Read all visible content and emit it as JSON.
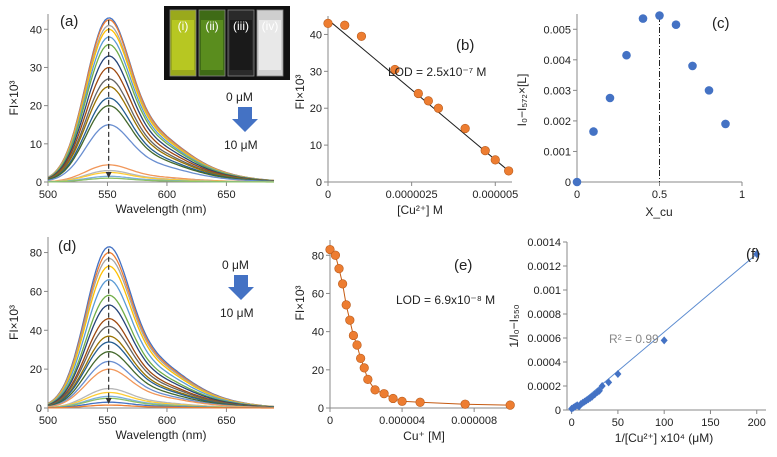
{
  "figure": {
    "panels": [
      "(a)",
      "(b)",
      "(c)",
      "(d)",
      "(e)",
      "(f)"
    ],
    "inset_labels": [
      "(i)",
      "(ii)",
      "(iii)",
      "(iv)"
    ],
    "arrow_text_a": [
      "0 μM",
      "10 μM"
    ],
    "arrow_text_d": [
      "0 μM",
      "10 μM"
    ],
    "colors": {
      "curves": [
        "#4472c4",
        "#ed7d31",
        "#a5a5a5",
        "#ffc000",
        "#5b9bd5",
        "#70ad47",
        "#264478",
        "#9e480e",
        "#636363",
        "#997300",
        "#255e91",
        "#43682b",
        "#698ed0",
        "#f1975a",
        "#b7b7b7",
        "#ffcd33",
        "#7cafdd",
        "#8cc168"
      ],
      "dot_blue": "#4472c4",
      "dot_orange": "#ed7d31",
      "line_fit": "#1f1f1f",
      "line_blue": "#5b8bd0",
      "arrow": "#4472c4"
    }
  },
  "chart_data": [
    {
      "id": "a",
      "type": "line",
      "title": "",
      "xlabel": "Wavelength (nm)",
      "ylabel": "FI×10³",
      "xlim": [
        500,
        690
      ],
      "ylim": [
        0,
        44
      ],
      "xticks": [
        500,
        550,
        600,
        650
      ],
      "yticks": [
        0,
        10,
        20,
        30,
        40
      ],
      "peak_x": 551,
      "peaks": [
        43,
        42.5,
        41,
        40,
        38,
        36,
        33,
        30,
        27,
        25,
        22,
        20,
        15,
        4.5,
        3,
        2.5,
        1.5,
        1
      ],
      "dashed_x": 551
    },
    {
      "id": "b",
      "type": "scatter",
      "annotation": "LOD = 2.5x10⁻⁷ M",
      "xlabel": "[Cu²⁺] M",
      "ylabel": "FI×10³",
      "xlim": [
        0,
        5.5e-06
      ],
      "ylim": [
        0,
        45
      ],
      "xticks": [
        0,
        2.5e-06,
        5e-06
      ],
      "xtick_labels": [
        "0",
        "0.0000025",
        "0.000005"
      ],
      "yticks": [
        0,
        10,
        20,
        30,
        40
      ],
      "x": [
        0,
        5e-07,
        1e-06,
        2e-06,
        2.7e-06,
        3e-06,
        3.3e-06,
        4.1e-06,
        4.7e-06,
        5e-06,
        5.4e-06
      ],
      "y": [
        43,
        42.5,
        39.5,
        30.5,
        24,
        22,
        20,
        14.5,
        8.5,
        6,
        3
      ],
      "fit": {
        "x": [
          0,
          5.4e-06
        ],
        "y": [
          44,
          3
        ]
      }
    },
    {
      "id": "c",
      "type": "scatter",
      "xlabel": "X_cu",
      "ylabel": "I₀−I₅₇₂×[L]",
      "xlim": [
        0,
        1
      ],
      "ylim": [
        0,
        0.0055
      ],
      "xticks": [
        0,
        0.5,
        1
      ],
      "xtick_labels": [
        "0",
        "0.5",
        "1"
      ],
      "yticks": [
        0,
        0.001,
        0.002,
        0.003,
        0.004,
        0.005
      ],
      "ytick_labels": [
        "0",
        "0.001",
        "0.002",
        "0.003",
        "0.004",
        "0.005"
      ],
      "x": [
        0,
        0.1,
        0.2,
        0.3,
        0.4,
        0.5,
        0.6,
        0.7,
        0.8,
        0.9
      ],
      "y": [
        0,
        0.00165,
        0.00275,
        0.00415,
        0.00535,
        0.00545,
        0.00515,
        0.0038,
        0.003,
        0.0019
      ],
      "vline_x": 0.5
    },
    {
      "id": "d",
      "type": "line",
      "xlabel": "Wavelength (nm)",
      "ylabel": "FI×10³",
      "xlim": [
        500,
        690
      ],
      "ylim": [
        0,
        88
      ],
      "xticks": [
        500,
        550,
        600,
        650
      ],
      "yticks": [
        0,
        20,
        40,
        60,
        80
      ],
      "peak_x": 551,
      "peaks": [
        83,
        80,
        77,
        73,
        66,
        58,
        53,
        46,
        42,
        37,
        34,
        29,
        24,
        20,
        10,
        8,
        6,
        5,
        3,
        1.5
      ],
      "dashed_x": 551
    },
    {
      "id": "e",
      "type": "line",
      "annotation": "LOD = 6.9x10⁻⁸ M",
      "xlabel": "Cu⁺ [M]",
      "ylabel": "FI×10³",
      "xlim": [
        0,
        1.01e-05
      ],
      "ylim": [
        0,
        88
      ],
      "xticks": [
        0,
        4e-06,
        8e-06
      ],
      "xtick_labels": [
        "0",
        "0.000004",
        "0.000008"
      ],
      "yticks": [
        0,
        20,
        40,
        60,
        80
      ],
      "x": [
        0,
        3e-07,
        5e-07,
        7e-07,
        9e-07,
        1.1e-06,
        1.3e-06,
        1.5e-06,
        1.7e-06,
        1.9e-06,
        2.1e-06,
        2.5e-06,
        3e-06,
        3.5e-06,
        4e-06,
        5e-06,
        7.5e-06,
        1e-05
      ],
      "y": [
        83,
        80,
        73,
        65,
        54,
        46,
        38,
        33,
        26,
        21,
        15,
        9.5,
        7.5,
        5,
        3.5,
        3,
        2,
        1.5
      ]
    },
    {
      "id": "f",
      "type": "scatter",
      "annotation": "R² = 0.99",
      "xlabel": "1/[Cu²⁺] x10⁴ (μM)",
      "ylabel": "1/I₀−I₅₅₀",
      "xlim": [
        -5,
        210
      ],
      "ylim": [
        0,
        0.0014
      ],
      "xticks": [
        0,
        50,
        100,
        150,
        200
      ],
      "yticks": [
        0,
        0.0002,
        0.0004,
        0.0006,
        0.0008,
        0.001,
        0.0012,
        0.0014
      ],
      "ytick_labels": [
        "0",
        "0.0002",
        "0.0004",
        "0.0006",
        "0.0008",
        "0.001",
        "0.0012",
        "0.0014"
      ],
      "x": [
        0,
        2,
        4,
        6,
        8,
        10,
        12,
        14,
        16,
        18,
        20,
        22,
        25,
        28,
        30,
        33,
        40,
        50,
        100,
        200
      ],
      "y": [
        1e-05,
        2e-05,
        3e-05,
        4e-05,
        3e-05,
        5e-05,
        6e-05,
        7e-05,
        8e-05,
        9e-05,
        0.0001,
        0.00011,
        0.00013,
        0.00015,
        0.00016,
        0.0002,
        0.00023,
        0.0003,
        0.00058,
        0.0013
      ],
      "fit": {
        "x": [
          0,
          200
        ],
        "y": [
          0,
          0.0013
        ]
      }
    }
  ]
}
